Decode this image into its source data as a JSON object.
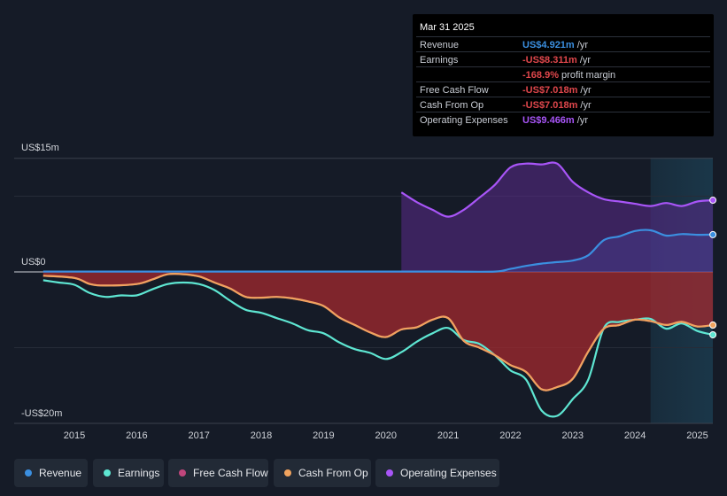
{
  "tooltip": {
    "date": "Mar 31 2025",
    "rows": [
      {
        "label": "Revenue",
        "value": "US$4.921m",
        "unit": " /yr",
        "color": "#3b8fe0"
      },
      {
        "label": "Earnings",
        "value": "-US$8.311m",
        "unit": " /yr",
        "color": "#e0474c"
      },
      {
        "label": "",
        "value": "-168.9%",
        "unit": " profit margin",
        "color": "#e0474c"
      },
      {
        "label": "Free Cash Flow",
        "value": "-US$7.018m",
        "unit": " /yr",
        "color": "#e0474c"
      },
      {
        "label": "Cash From Op",
        "value": "-US$7.018m",
        "unit": " /yr",
        "color": "#e0474c"
      },
      {
        "label": "Operating Expenses",
        "value": "US$9.466m",
        "unit": " /yr",
        "color": "#a855f7"
      }
    ]
  },
  "legend": [
    {
      "label": "Revenue",
      "color": "#3b8fe0"
    },
    {
      "label": "Earnings",
      "color": "#5ee6d2"
    },
    {
      "label": "Free Cash Flow",
      "color": "#c0467c"
    },
    {
      "label": "Cash From Op",
      "color": "#f0a35e"
    },
    {
      "label": "Operating Expenses",
      "color": "#a855f7"
    }
  ],
  "chart_data": {
    "type": "area",
    "title": "",
    "xlabel": "",
    "ylabel": "",
    "xlim": [
      2014.3,
      2025.25
    ],
    "ylim": [
      -20,
      15
    ],
    "y_tick_labels": [
      {
        "value": 15,
        "label": "US$15m"
      },
      {
        "value": 0,
        "label": "US$0"
      },
      {
        "value": -20,
        "label": "-US$20m"
      }
    ],
    "x_tick_labels": [
      "2015",
      "2016",
      "2017",
      "2018",
      "2019",
      "2020",
      "2021",
      "2022",
      "2023",
      "2024",
      "2025"
    ],
    "x_ticks": [
      2015,
      2016,
      2017,
      2018,
      2019,
      2020,
      2021,
      2022,
      2023,
      2024,
      2025
    ],
    "forecast_start": 2024.25,
    "series": [
      {
        "name": "Revenue",
        "color": "#3b8fe0",
        "points": [
          [
            2014.5,
            0.05
          ],
          [
            2015,
            0.05
          ],
          [
            2016,
            0.05
          ],
          [
            2017,
            0.05
          ],
          [
            2018,
            0.05
          ],
          [
            2019,
            0.05
          ],
          [
            2020,
            0.05
          ],
          [
            2021,
            0.05
          ],
          [
            2021.75,
            0.05
          ],
          [
            2022,
            0.4
          ],
          [
            2022.25,
            0.8
          ],
          [
            2022.5,
            1.1
          ],
          [
            2022.75,
            1.3
          ],
          [
            2023,
            1.5
          ],
          [
            2023.25,
            2.2
          ],
          [
            2023.5,
            4.2
          ],
          [
            2023.75,
            4.7
          ],
          [
            2024,
            5.4
          ],
          [
            2024.25,
            5.5
          ],
          [
            2024.5,
            4.8
          ],
          [
            2024.75,
            5.0
          ],
          [
            2025,
            4.9
          ],
          [
            2025.25,
            4.92
          ]
        ]
      },
      {
        "name": "Operating Expenses",
        "color": "#a855f7",
        "points": [
          [
            2020.25,
            10.5
          ],
          [
            2020.5,
            9.2
          ],
          [
            2020.75,
            8.2
          ],
          [
            2021,
            7.3
          ],
          [
            2021.25,
            8.2
          ],
          [
            2021.5,
            9.8
          ],
          [
            2021.75,
            11.5
          ],
          [
            2022,
            13.8
          ],
          [
            2022.25,
            14.3
          ],
          [
            2022.5,
            14.2
          ],
          [
            2022.75,
            14.3
          ],
          [
            2023,
            11.9
          ],
          [
            2023.25,
            10.5
          ],
          [
            2023.5,
            9.6
          ],
          [
            2023.75,
            9.3
          ],
          [
            2024,
            9.0
          ],
          [
            2024.25,
            8.7
          ],
          [
            2024.5,
            9.1
          ],
          [
            2024.75,
            8.7
          ],
          [
            2025,
            9.3
          ],
          [
            2025.25,
            9.47
          ]
        ]
      },
      {
        "name": "Earnings",
        "color": "#5ee6d2",
        "points": [
          [
            2014.5,
            -1.1
          ],
          [
            2014.75,
            -1.4
          ],
          [
            2015,
            -1.7
          ],
          [
            2015.25,
            -2.8
          ],
          [
            2015.5,
            -3.3
          ],
          [
            2015.75,
            -3.1
          ],
          [
            2016,
            -3.1
          ],
          [
            2016.25,
            -2.3
          ],
          [
            2016.5,
            -1.6
          ],
          [
            2016.75,
            -1.4
          ],
          [
            2017,
            -1.6
          ],
          [
            2017.25,
            -2.4
          ],
          [
            2017.5,
            -3.8
          ],
          [
            2017.75,
            -5.0
          ],
          [
            2018,
            -5.4
          ],
          [
            2018.25,
            -6.1
          ],
          [
            2018.5,
            -6.8
          ],
          [
            2018.75,
            -7.7
          ],
          [
            2019,
            -8.1
          ],
          [
            2019.25,
            -9.3
          ],
          [
            2019.5,
            -10.2
          ],
          [
            2019.75,
            -10.7
          ],
          [
            2020,
            -11.5
          ],
          [
            2020.25,
            -10.6
          ],
          [
            2020.5,
            -9.2
          ],
          [
            2020.75,
            -8.1
          ],
          [
            2021,
            -7.4
          ],
          [
            2021.25,
            -9.0
          ],
          [
            2021.5,
            -9.5
          ],
          [
            2021.75,
            -11.0
          ],
          [
            2022,
            -13.0
          ],
          [
            2022.25,
            -14.2
          ],
          [
            2022.5,
            -18.3
          ],
          [
            2022.75,
            -19.0
          ],
          [
            2023,
            -16.8
          ],
          [
            2023.25,
            -14.2
          ],
          [
            2023.5,
            -7.4
          ],
          [
            2023.75,
            -6.6
          ],
          [
            2024,
            -6.3
          ],
          [
            2024.25,
            -6.2
          ],
          [
            2024.5,
            -7.5
          ],
          [
            2024.75,
            -6.8
          ],
          [
            2025,
            -7.8
          ],
          [
            2025.25,
            -8.3
          ]
        ]
      },
      {
        "name": "Free Cash Flow",
        "color": "#c0467c",
        "points": [
          [
            2014.5,
            -0.5
          ],
          [
            2015,
            -0.8
          ],
          [
            2015.25,
            -1.6
          ],
          [
            2015.5,
            -1.8
          ],
          [
            2016,
            -1.6
          ],
          [
            2016.25,
            -1.0
          ],
          [
            2016.5,
            -0.3
          ],
          [
            2016.75,
            -0.3
          ],
          [
            2017,
            -0.6
          ],
          [
            2017.25,
            -1.4
          ],
          [
            2017.5,
            -2.2
          ],
          [
            2017.75,
            -3.3
          ],
          [
            2018,
            -3.4
          ],
          [
            2018.25,
            -3.3
          ],
          [
            2018.5,
            -3.5
          ],
          [
            2018.75,
            -3.9
          ],
          [
            2019,
            -4.5
          ],
          [
            2019.25,
            -6.0
          ],
          [
            2019.5,
            -7.0
          ],
          [
            2019.75,
            -8.0
          ],
          [
            2020,
            -8.6
          ],
          [
            2020.25,
            -7.6
          ],
          [
            2020.5,
            -7.3
          ],
          [
            2020.75,
            -6.3
          ],
          [
            2021,
            -6.1
          ],
          [
            2021.25,
            -9.1
          ],
          [
            2021.5,
            -10.0
          ],
          [
            2021.75,
            -11.0
          ],
          [
            2022,
            -12.3
          ],
          [
            2022.25,
            -13.2
          ],
          [
            2022.5,
            -15.5
          ],
          [
            2022.75,
            -15.2
          ],
          [
            2023,
            -14.1
          ],
          [
            2023.25,
            -10.5
          ],
          [
            2023.5,
            -7.5
          ],
          [
            2023.75,
            -7.0
          ],
          [
            2024,
            -6.3
          ],
          [
            2024.25,
            -6.5
          ],
          [
            2024.5,
            -7.0
          ],
          [
            2024.75,
            -6.6
          ],
          [
            2025,
            -7.2
          ],
          [
            2025.25,
            -7.02
          ]
        ]
      },
      {
        "name": "Cash From Op",
        "color": "#f0a35e",
        "points": [
          [
            2014.5,
            -0.5
          ],
          [
            2015,
            -0.8
          ],
          [
            2015.25,
            -1.6
          ],
          [
            2015.5,
            -1.8
          ],
          [
            2016,
            -1.6
          ],
          [
            2016.25,
            -1.0
          ],
          [
            2016.5,
            -0.3
          ],
          [
            2016.75,
            -0.3
          ],
          [
            2017,
            -0.6
          ],
          [
            2017.25,
            -1.4
          ],
          [
            2017.5,
            -2.2
          ],
          [
            2017.75,
            -3.3
          ],
          [
            2018,
            -3.4
          ],
          [
            2018.25,
            -3.3
          ],
          [
            2018.5,
            -3.5
          ],
          [
            2018.75,
            -3.9
          ],
          [
            2019,
            -4.5
          ],
          [
            2019.25,
            -6.0
          ],
          [
            2019.5,
            -7.0
          ],
          [
            2019.75,
            -8.0
          ],
          [
            2020,
            -8.6
          ],
          [
            2020.25,
            -7.6
          ],
          [
            2020.5,
            -7.3
          ],
          [
            2020.75,
            -6.3
          ],
          [
            2021,
            -6.1
          ],
          [
            2021.25,
            -9.1
          ],
          [
            2021.5,
            -10.0
          ],
          [
            2021.75,
            -11.0
          ],
          [
            2022,
            -12.3
          ],
          [
            2022.25,
            -13.2
          ],
          [
            2022.5,
            -15.5
          ],
          [
            2022.75,
            -15.2
          ],
          [
            2023,
            -14.1
          ],
          [
            2023.25,
            -10.5
          ],
          [
            2023.5,
            -7.5
          ],
          [
            2023.75,
            -7.0
          ],
          [
            2024,
            -6.3
          ],
          [
            2024.25,
            -6.5
          ],
          [
            2024.5,
            -7.0
          ],
          [
            2024.75,
            -6.6
          ],
          [
            2025,
            -7.2
          ],
          [
            2025.25,
            -7.02
          ]
        ]
      }
    ]
  }
}
